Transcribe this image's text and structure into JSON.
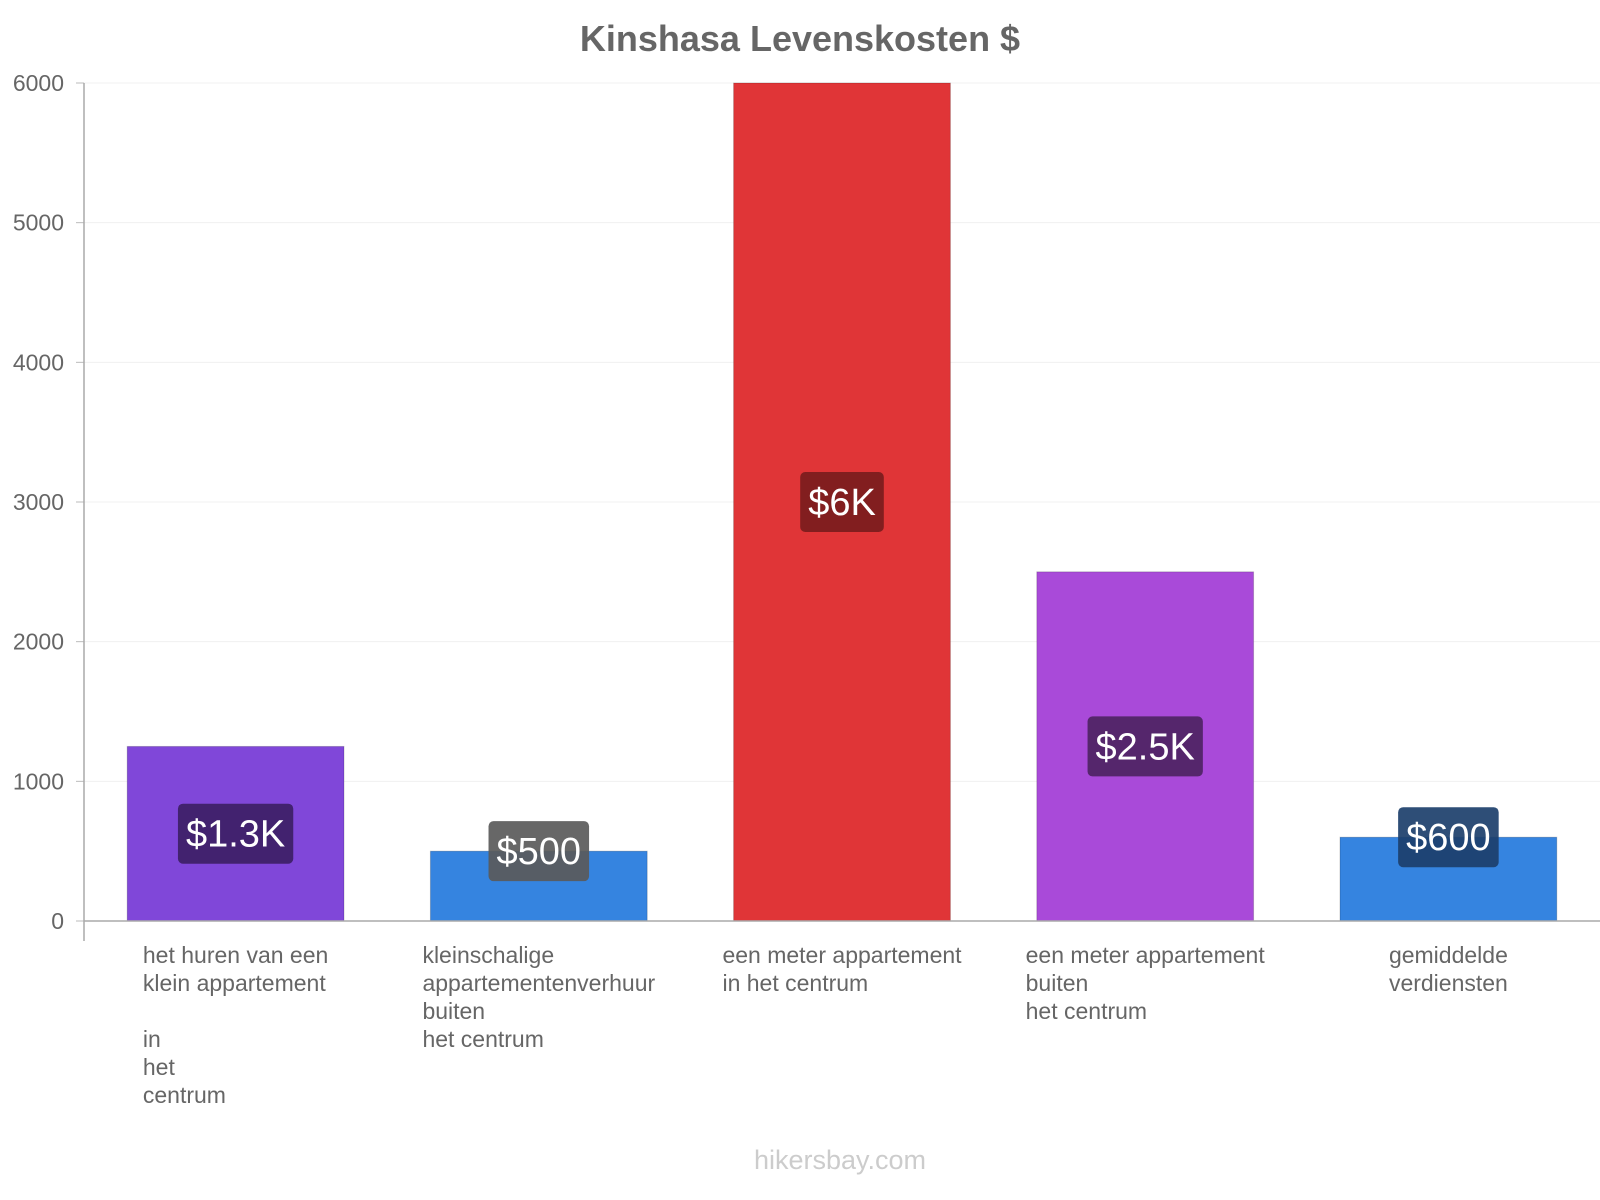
{
  "chart_data": {
    "type": "bar",
    "title": "Kinshasa Levenskosten $",
    "xlabel": "",
    "ylabel": "",
    "ylim": [
      0,
      6000
    ],
    "yticks": [
      0,
      1000,
      2000,
      3000,
      4000,
      5000,
      6000
    ],
    "grid": true,
    "categories": [
      [
        "het huren van een",
        "klein appartement",
        "",
        "in",
        "het",
        "centrum"
      ],
      [
        "kleinschalige",
        "appartementenverhuur",
        "buiten",
        "het centrum"
      ],
      [
        "een meter appartement",
        "in het centrum"
      ],
      [
        "een meter appartement",
        "buiten",
        "het centrum"
      ],
      [
        "gemiddelde",
        "verdiensten"
      ]
    ],
    "values": [
      1250,
      500,
      6000,
      2500,
      600
    ],
    "data_labels": [
      "$1.3K",
      "$500",
      "$6K",
      "$2.5K",
      "$600"
    ],
    "colors": [
      "#8047d9",
      "#3584e0",
      "#e03537",
      "#a94ad9",
      "#3584e0"
    ],
    "label_bg_colors": [
      "#3d2066",
      "#5a5a5a",
      "#7a1c1d",
      "#4e2363",
      "#1c3f6b"
    ],
    "label_positions": [
      "inside",
      "top",
      "inside",
      "inside",
      "top"
    ]
  },
  "watermark": "hikersbay.com"
}
